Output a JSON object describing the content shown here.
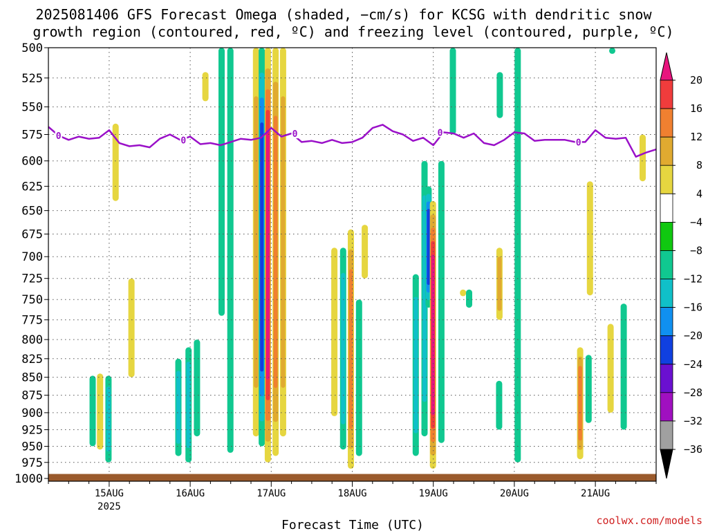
{
  "title": {
    "line1": "2025081406 GFS Forecast Omega (shaded, −cm/s) for KCSG with dendritic snow",
    "line2": "growth region (contoured, red, ºC) and freezing level (contoured, purple, ºC)"
  },
  "xlabel": "Forecast Time (UTC)",
  "credit": "coolwx.com/models",
  "colors": {
    "freezing_line": "#9a10c8",
    "ground": "#9a5a2c",
    "credit": "#d02020"
  },
  "chart_data": {
    "type": "heatmap",
    "title": "2025081406 GFS Forecast Omega (shaded, −cm/s) for KCSG with dendritic snow growth region (contoured, red, ºC) and freezing level (contoured, purple, ºC)",
    "xlabel": "Forecast Time (UTC)",
    "ylabel": "",
    "y_scale": "log-pressure (inverted)",
    "y_ticks": [
      500,
      525,
      550,
      575,
      600,
      625,
      650,
      675,
      700,
      725,
      750,
      775,
      800,
      825,
      850,
      875,
      900,
      925,
      950,
      975,
      1000
    ],
    "ylim": [
      1000,
      500
    ],
    "x_ticks": [
      {
        "label": "15AUG",
        "sub": "2025",
        "hour": 18
      },
      {
        "label": "16AUG",
        "sub": "",
        "hour": 42
      },
      {
        "label": "17AUG",
        "sub": "",
        "hour": 66
      },
      {
        "label": "18AUG",
        "sub": "",
        "hour": 90
      },
      {
        "label": "19AUG",
        "sub": "",
        "hour": 114
      },
      {
        "label": "20AUG",
        "sub": "",
        "hour": 138
      },
      {
        "label": "21AUG",
        "sub": "",
        "hour": 162
      }
    ],
    "xlim_hours": [
      0,
      180
    ],
    "grid": true,
    "colorbar": {
      "levels": [
        "20",
        "16",
        "12",
        "8",
        "4",
        "−4",
        "−8",
        "−12",
        "−16",
        "−20",
        "−24",
        "−28",
        "−32",
        "−36"
      ],
      "colors": [
        "#e8157e",
        "#f03c3c",
        "#f08030",
        "#e0aa30",
        "#e6d640",
        "#ffffff",
        "#10c810",
        "#10c890",
        "#10c0c8",
        "#1090f0",
        "#1040e0",
        "#6a10d0",
        "#a010c0",
        "#a0a0a0",
        "#000000"
      ]
    },
    "freezing_level": {
      "label": "0",
      "hours": [
        0,
        3,
        6,
        9,
        12,
        15,
        18,
        21,
        24,
        27,
        30,
        33,
        36,
        39,
        42,
        45,
        48,
        51,
        54,
        57,
        60,
        63,
        66,
        69,
        72,
        75,
        78,
        81,
        84,
        87,
        90,
        93,
        96,
        99,
        102,
        105,
        108,
        111,
        114,
        117,
        120,
        123,
        126,
        129,
        132,
        135,
        138,
        141,
        144,
        147,
        150,
        153,
        156,
        159,
        162,
        165,
        168,
        171,
        174,
        177,
        180
      ],
      "pressure_hPa": [
        568,
        576,
        580,
        577,
        579,
        578,
        571,
        583,
        586,
        585,
        587,
        579,
        575,
        580,
        577,
        584,
        583,
        585,
        582,
        579,
        580,
        578,
        569,
        577,
        574,
        582,
        581,
        583,
        580,
        583,
        582,
        578,
        569,
        566,
        572,
        575,
        581,
        578,
        585,
        573,
        574,
        578,
        574,
        583,
        585,
        580,
        573,
        574,
        581,
        580,
        580,
        580,
        582,
        582,
        571,
        578,
        579,
        578,
        596,
        592,
        589
      ]
    },
    "omega_features": [
      {
        "hour": 13.1,
        "top": 848,
        "bottom": 950,
        "peak": -8
      },
      {
        "hour": 15.3,
        "top": 845,
        "bottom": 955,
        "peak": 4
      },
      {
        "hour": 17.8,
        "top": 848,
        "bottom": 975,
        "peak": -12
      },
      {
        "hour": 19.9,
        "top": 565,
        "bottom": 640,
        "peak": 4
      },
      {
        "hour": 24.6,
        "top": 725,
        "bottom": 850,
        "peak": 4
      },
      {
        "hour": 38.5,
        "top": 825,
        "bottom": 965,
        "peak": -12
      },
      {
        "hour": 41.5,
        "top": 810,
        "bottom": 975,
        "peak": -12
      },
      {
        "hour": 44.0,
        "top": 800,
        "bottom": 935,
        "peak": -8
      },
      {
        "hour": 46.5,
        "top": 520,
        "bottom": 545,
        "peak": 4
      },
      {
        "hour": 51.3,
        "top": 500,
        "bottom": 770,
        "peak": -8
      },
      {
        "hour": 53.9,
        "top": 500,
        "bottom": 960,
        "peak": -8
      },
      {
        "hour": 61.5,
        "top": 500,
        "bottom": 935,
        "peak": 8
      },
      {
        "hour": 63.2,
        "top": 500,
        "bottom": 950,
        "peak": -20
      },
      {
        "hour": 65.0,
        "top": 500,
        "bottom": 975,
        "peak": 20
      },
      {
        "hour": 67.3,
        "top": 500,
        "bottom": 965,
        "peak": 12
      },
      {
        "hour": 69.5,
        "top": 500,
        "bottom": 935,
        "peak": 8
      },
      {
        "hour": 84.7,
        "top": 690,
        "bottom": 905,
        "peak": 4
      },
      {
        "hour": 87.3,
        "top": 690,
        "bottom": 955,
        "peak": -12
      },
      {
        "hour": 89.6,
        "top": 670,
        "bottom": 985,
        "peak": 12
      },
      {
        "hour": 92.0,
        "top": 750,
        "bottom": 965,
        "peak": -8
      },
      {
        "hour": 93.7,
        "top": 665,
        "bottom": 725,
        "peak": 4
      },
      {
        "hour": 108.8,
        "top": 720,
        "bottom": 965,
        "peak": -12
      },
      {
        "hour": 111.4,
        "top": 600,
        "bottom": 935,
        "peak": -12
      },
      {
        "hour": 112.6,
        "top": 625,
        "bottom": 760,
        "peak": -20
      },
      {
        "hour": 113.9,
        "top": 640,
        "bottom": 985,
        "peak": 20
      },
      {
        "hour": 116.4,
        "top": 600,
        "bottom": 945,
        "peak": -8
      },
      {
        "hour": 119.8,
        "top": 500,
        "bottom": 575,
        "peak": -8
      },
      {
        "hour": 122.8,
        "top": 738,
        "bottom": 746,
        "peak": 4
      },
      {
        "hour": 124.6,
        "top": 738,
        "bottom": 760,
        "peak": -8
      },
      {
        "hour": 133.5,
        "top": 855,
        "bottom": 925,
        "peak": -8
      },
      {
        "hour": 133.7,
        "top": 520,
        "bottom": 560,
        "peak": -8
      },
      {
        "hour": 133.6,
        "top": 690,
        "bottom": 775,
        "peak": 8
      },
      {
        "hour": 139.0,
        "top": 500,
        "bottom": 975,
        "peak": -8
      },
      {
        "hour": 157.5,
        "top": 810,
        "bottom": 970,
        "peak": 12
      },
      {
        "hour": 160.4,
        "top": 620,
        "bottom": 745,
        "peak": 4
      },
      {
        "hour": 160.0,
        "top": 820,
        "bottom": 915,
        "peak": -8
      },
      {
        "hour": 166.5,
        "top": 780,
        "bottom": 900,
        "peak": 4
      },
      {
        "hour": 170.4,
        "top": 755,
        "bottom": 925,
        "peak": -8
      },
      {
        "hour": 176.0,
        "top": 575,
        "bottom": 620,
        "peak": 4
      },
      {
        "hour": 167.0,
        "top": 500,
        "bottom": 505,
        "peak": -8
      }
    ]
  }
}
